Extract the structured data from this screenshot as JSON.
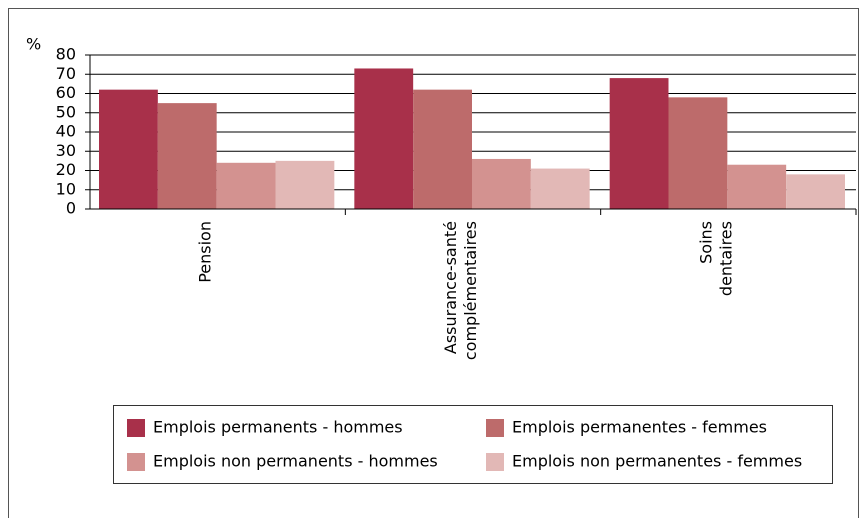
{
  "chart_data": {
    "type": "bar",
    "y_label": "%",
    "categories": [
      "Pension",
      "Assurance-santé complémentaires",
      "Soins dentaires"
    ],
    "series": [
      {
        "name": "Emplois permanents - hommes",
        "color": "#a8304a",
        "values": [
          62,
          73,
          68
        ]
      },
      {
        "name": "Emplois permanentes - femmes",
        "color": "#bd6b6b",
        "values": [
          55,
          62,
          58
        ]
      },
      {
        "name": "Emplois non permanents - hommes",
        "color": "#d39290",
        "values": [
          24,
          26,
          23
        ]
      },
      {
        "name": "Emplois non permanentes - femmes",
        "color": "#e2b8b6",
        "values": [
          25,
          21,
          18
        ]
      }
    ],
    "ylim": [
      0,
      80
    ],
    "yticks": [
      0,
      10,
      20,
      30,
      40,
      50,
      60,
      70,
      80
    ],
    "grid": true,
    "legend": "bottom"
  }
}
